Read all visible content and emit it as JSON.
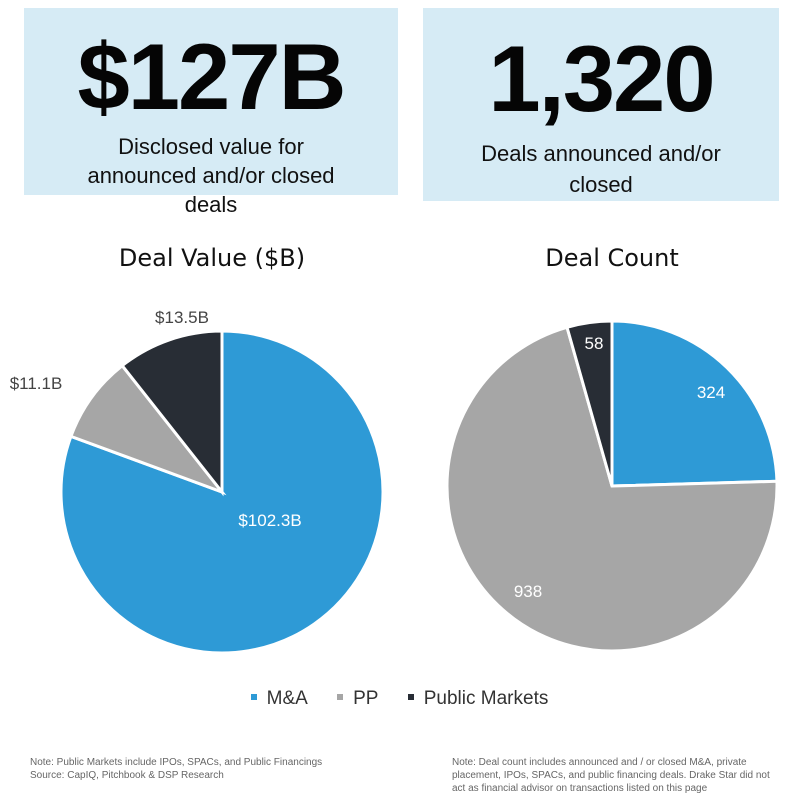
{
  "stats": [
    {
      "value": "$127B",
      "description": "Disclosed value for announced and/or closed deals"
    },
    {
      "value": "1,320",
      "description": "Deals announced and/or closed"
    }
  ],
  "colors": {
    "ma": "#2e9ad6",
    "pp": "#a6a6a6",
    "public_markets": "#282d35",
    "box_bg": "#d6ebf5"
  },
  "legend": [
    {
      "label": "M&A",
      "color": "#2e9ad6"
    },
    {
      "label": "PP",
      "color": "#a6a6a6"
    },
    {
      "label": "Public Markets",
      "color": "#282d35"
    }
  ],
  "chart_data": [
    {
      "type": "pie",
      "title": "Deal Value ($B)",
      "categories": [
        "M&A",
        "PP",
        "Public Markets"
      ],
      "values": [
        102.3,
        11.1,
        13.5
      ],
      "data_labels": [
        "$102.3B",
        "$11.1B",
        "$13.5B"
      ]
    },
    {
      "type": "pie",
      "title": "Deal Count",
      "categories": [
        "M&A",
        "PP",
        "Public Markets"
      ],
      "values": [
        324,
        938,
        58
      ],
      "data_labels": [
        "324",
        "938",
        "58"
      ]
    }
  ],
  "notes": {
    "left_line1": "Note: Public Markets include IPOs, SPACs, and Public Financings",
    "left_line2": "Source: CapIQ, Pitchbook & DSP Research",
    "right": "Note: Deal count includes announced and / or closed M&A, private placement, IPOs, SPACs, and public financing deals. Drake Star did not act as financial advisor on transactions listed on this page"
  }
}
